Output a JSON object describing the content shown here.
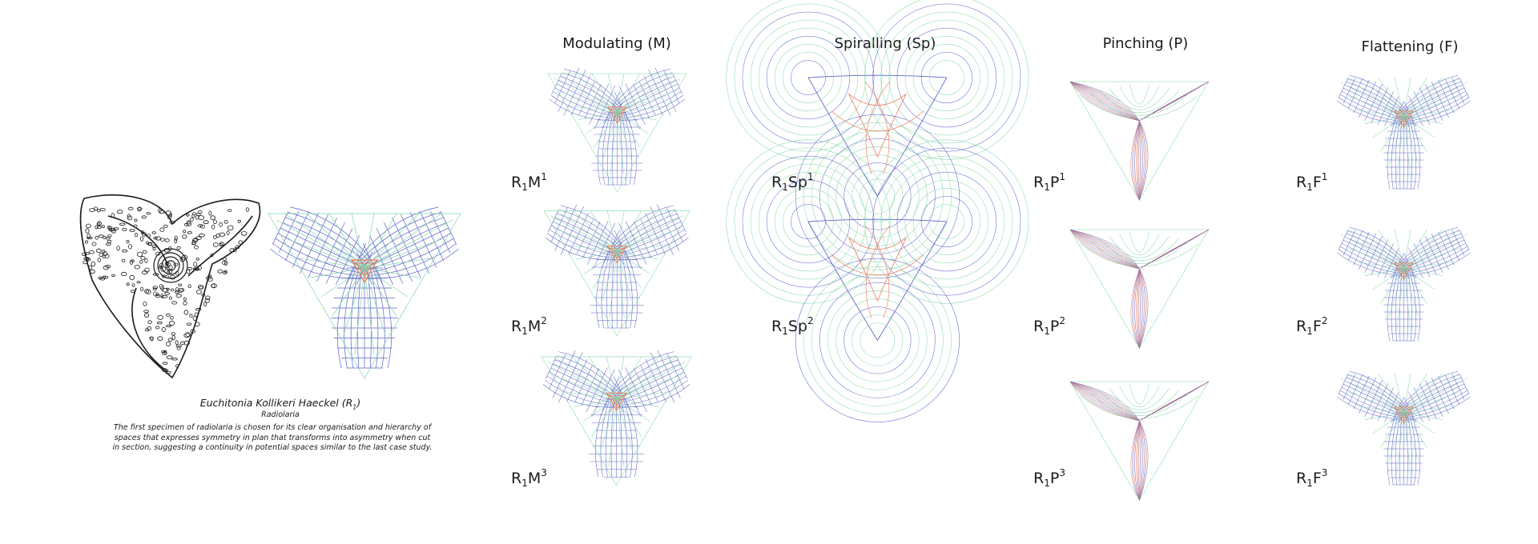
{
  "columns": [
    {
      "title": "Modulating (M)",
      "code": "M",
      "variants": [
        "1",
        "2",
        "3"
      ]
    },
    {
      "title": "Spiralling (Sp)",
      "code": "Sp",
      "variants": [
        "1",
        "2"
      ]
    },
    {
      "title": "Pinching (P)",
      "code": "P",
      "variants": [
        "1",
        "2",
        "3"
      ]
    },
    {
      "title": "Flattening (F)",
      "code": "F",
      "variants": [
        "1",
        "2",
        "3"
      ]
    }
  ],
  "specimen": {
    "label_base": "R",
    "label_sub": "1",
    "name": "Euchitonia Kollikeri Haeckel (R",
    "name_close": ")",
    "category": "Radiolaria",
    "description": "The first specimen of radiolaria is chosen for its clear organisation and hierarchy of spaces that expresses symmetry in plan that transforms into asymmetry when cut in section, suggesting a continuity in potential spaces similar to the last case study."
  },
  "colors": {
    "blue": "#5b62c8",
    "green": "#7fd6a8",
    "red": "#f07a5a",
    "ink": "#1a1a1a"
  }
}
